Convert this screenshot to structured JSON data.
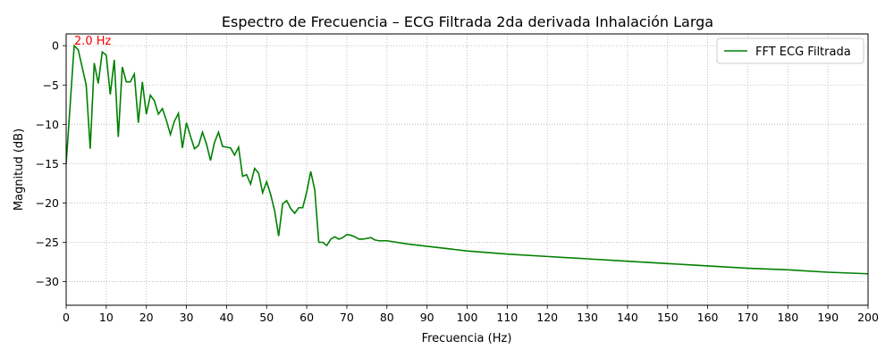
{
  "chart_data": {
    "type": "line",
    "title": "Espectro de Frecuencia – ECG Filtrada 2da derivada Inhalación Larga",
    "xlabel": "Frecuencia (Hz)",
    "ylabel": "Magnitud (dB)",
    "xlim": [
      0,
      200
    ],
    "ylim": [
      -33,
      1.5
    ],
    "x_ticks": [
      0,
      10,
      20,
      30,
      40,
      50,
      60,
      70,
      80,
      90,
      100,
      110,
      120,
      130,
      140,
      150,
      160,
      170,
      180,
      190,
      200
    ],
    "y_ticks": [
      0,
      -5,
      -10,
      -15,
      -20,
      -25,
      -30
    ],
    "grid": true,
    "legend_position": "top-right",
    "series": [
      {
        "name": "FFT ECG Filtrada",
        "color": "#008000",
        "x": [
          0,
          2,
          3,
          5,
          6,
          7,
          8,
          9,
          10,
          11,
          12,
          13,
          14,
          15,
          16,
          17,
          18,
          19,
          20,
          21,
          22,
          23,
          24,
          25,
          26,
          27,
          28,
          29,
          30,
          31,
          32,
          33,
          34,
          35,
          36,
          37,
          38,
          39,
          40,
          41,
          42,
          43,
          44,
          45,
          46,
          47,
          48,
          49,
          50,
          51,
          52,
          53,
          54,
          55,
          56,
          57,
          58,
          59,
          60,
          61,
          62,
          63,
          64,
          65,
          66,
          67,
          68,
          69,
          70,
          71,
          72,
          73,
          74,
          75,
          76,
          77,
          78,
          80,
          85,
          90,
          95,
          100,
          110,
          120,
          130,
          140,
          150,
          160,
          170,
          180,
          190,
          200
        ],
        "values": [
          -15,
          0,
          -0.5,
          -5,
          -13.1,
          -2.2,
          -4.8,
          -0.8,
          -1.2,
          -6.2,
          -1.8,
          -11.6,
          -2.7,
          -4.6,
          -4.6,
          -3.6,
          -9.8,
          -4.6,
          -8.7,
          -6.3,
          -7.0,
          -8.7,
          -8.0,
          -9.5,
          -11.3,
          -9.6,
          -8.6,
          -13.0,
          -9.8,
          -11.5,
          -13.1,
          -12.7,
          -11.0,
          -12.5,
          -14.6,
          -12.3,
          -11.0,
          -12.8,
          -12.9,
          -13.0,
          -13.9,
          -12.9,
          -16.6,
          -16.4,
          -17.6,
          -15.6,
          -16.2,
          -18.7,
          -17.3,
          -18.9,
          -21.0,
          -24.2,
          -20.1,
          -19.7,
          -20.7,
          -21.3,
          -20.6,
          -20.6,
          -18.6,
          -16.0,
          -18.3,
          -25.0,
          -25.0,
          -25.4,
          -24.6,
          -24.3,
          -24.6,
          -24.4,
          -24.0,
          -24.1,
          -24.3,
          -24.6,
          -24.6,
          -24.5,
          -24.4,
          -24.7,
          -24.8,
          -24.8,
          -25.2,
          -25.5,
          -25.8,
          -26.1,
          -26.5,
          -26.8,
          -27.1,
          -27.4,
          -27.7,
          -28.0,
          -28.3,
          -28.5,
          -28.8,
          -29.0
        ]
      }
    ],
    "annotation": {
      "text": "2.0 Hz",
      "x": 2.0,
      "y": 0,
      "color": "#ff0000"
    }
  }
}
